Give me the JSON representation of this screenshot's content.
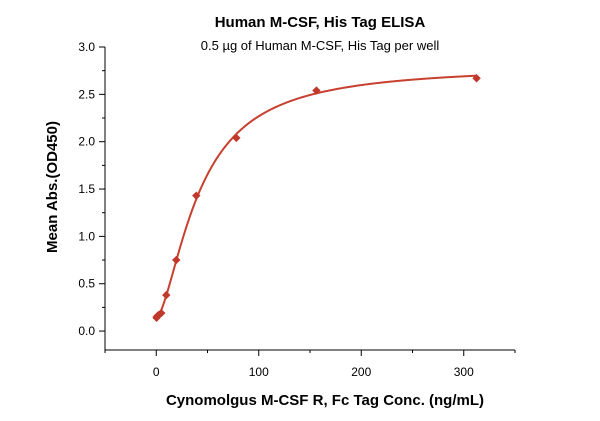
{
  "chart_data": {
    "type": "scatter",
    "title": "Human M-CSF, His Tag ELISA",
    "subtitle": "0.5 µg of Human M-CSF, His Tag per well",
    "xlabel": "Cynomolgus M-CSF R, Fc Tag Conc. (ng/mL)",
    "ylabel": "Mean Abs.(OD450)",
    "xlim": [
      -50,
      350
    ],
    "ylim": [
      -0.2,
      3.0
    ],
    "x_ticks": [
      0,
      100,
      200,
      300
    ],
    "y_ticks": [
      0.0,
      0.5,
      1.0,
      1.5,
      2.0,
      2.5,
      3.0
    ],
    "x_tick_labels": [
      "0",
      "100",
      "200",
      "300"
    ],
    "y_tick_labels": [
      "0.0",
      "0.5",
      "1.0",
      "1.5",
      "2.0",
      "2.5",
      "3.0"
    ],
    "grid": false,
    "legend": "none",
    "marker_color": "#c0392b",
    "curve_color": "#c8402f",
    "x": [
      0.31,
      0.61,
      1.22,
      2.44,
      4.88,
      9.77,
      19.53,
      39.06,
      78.13,
      156.25,
      312.5
    ],
    "y": [
      0.14,
      0.15,
      0.16,
      0.17,
      0.19,
      0.38,
      0.75,
      1.43,
      2.04,
      2.54,
      2.67
    ],
    "fit": {
      "model": "4PL",
      "bottom": 0.14,
      "top": 2.8,
      "ec50": 42,
      "hill": 1.6
    }
  }
}
